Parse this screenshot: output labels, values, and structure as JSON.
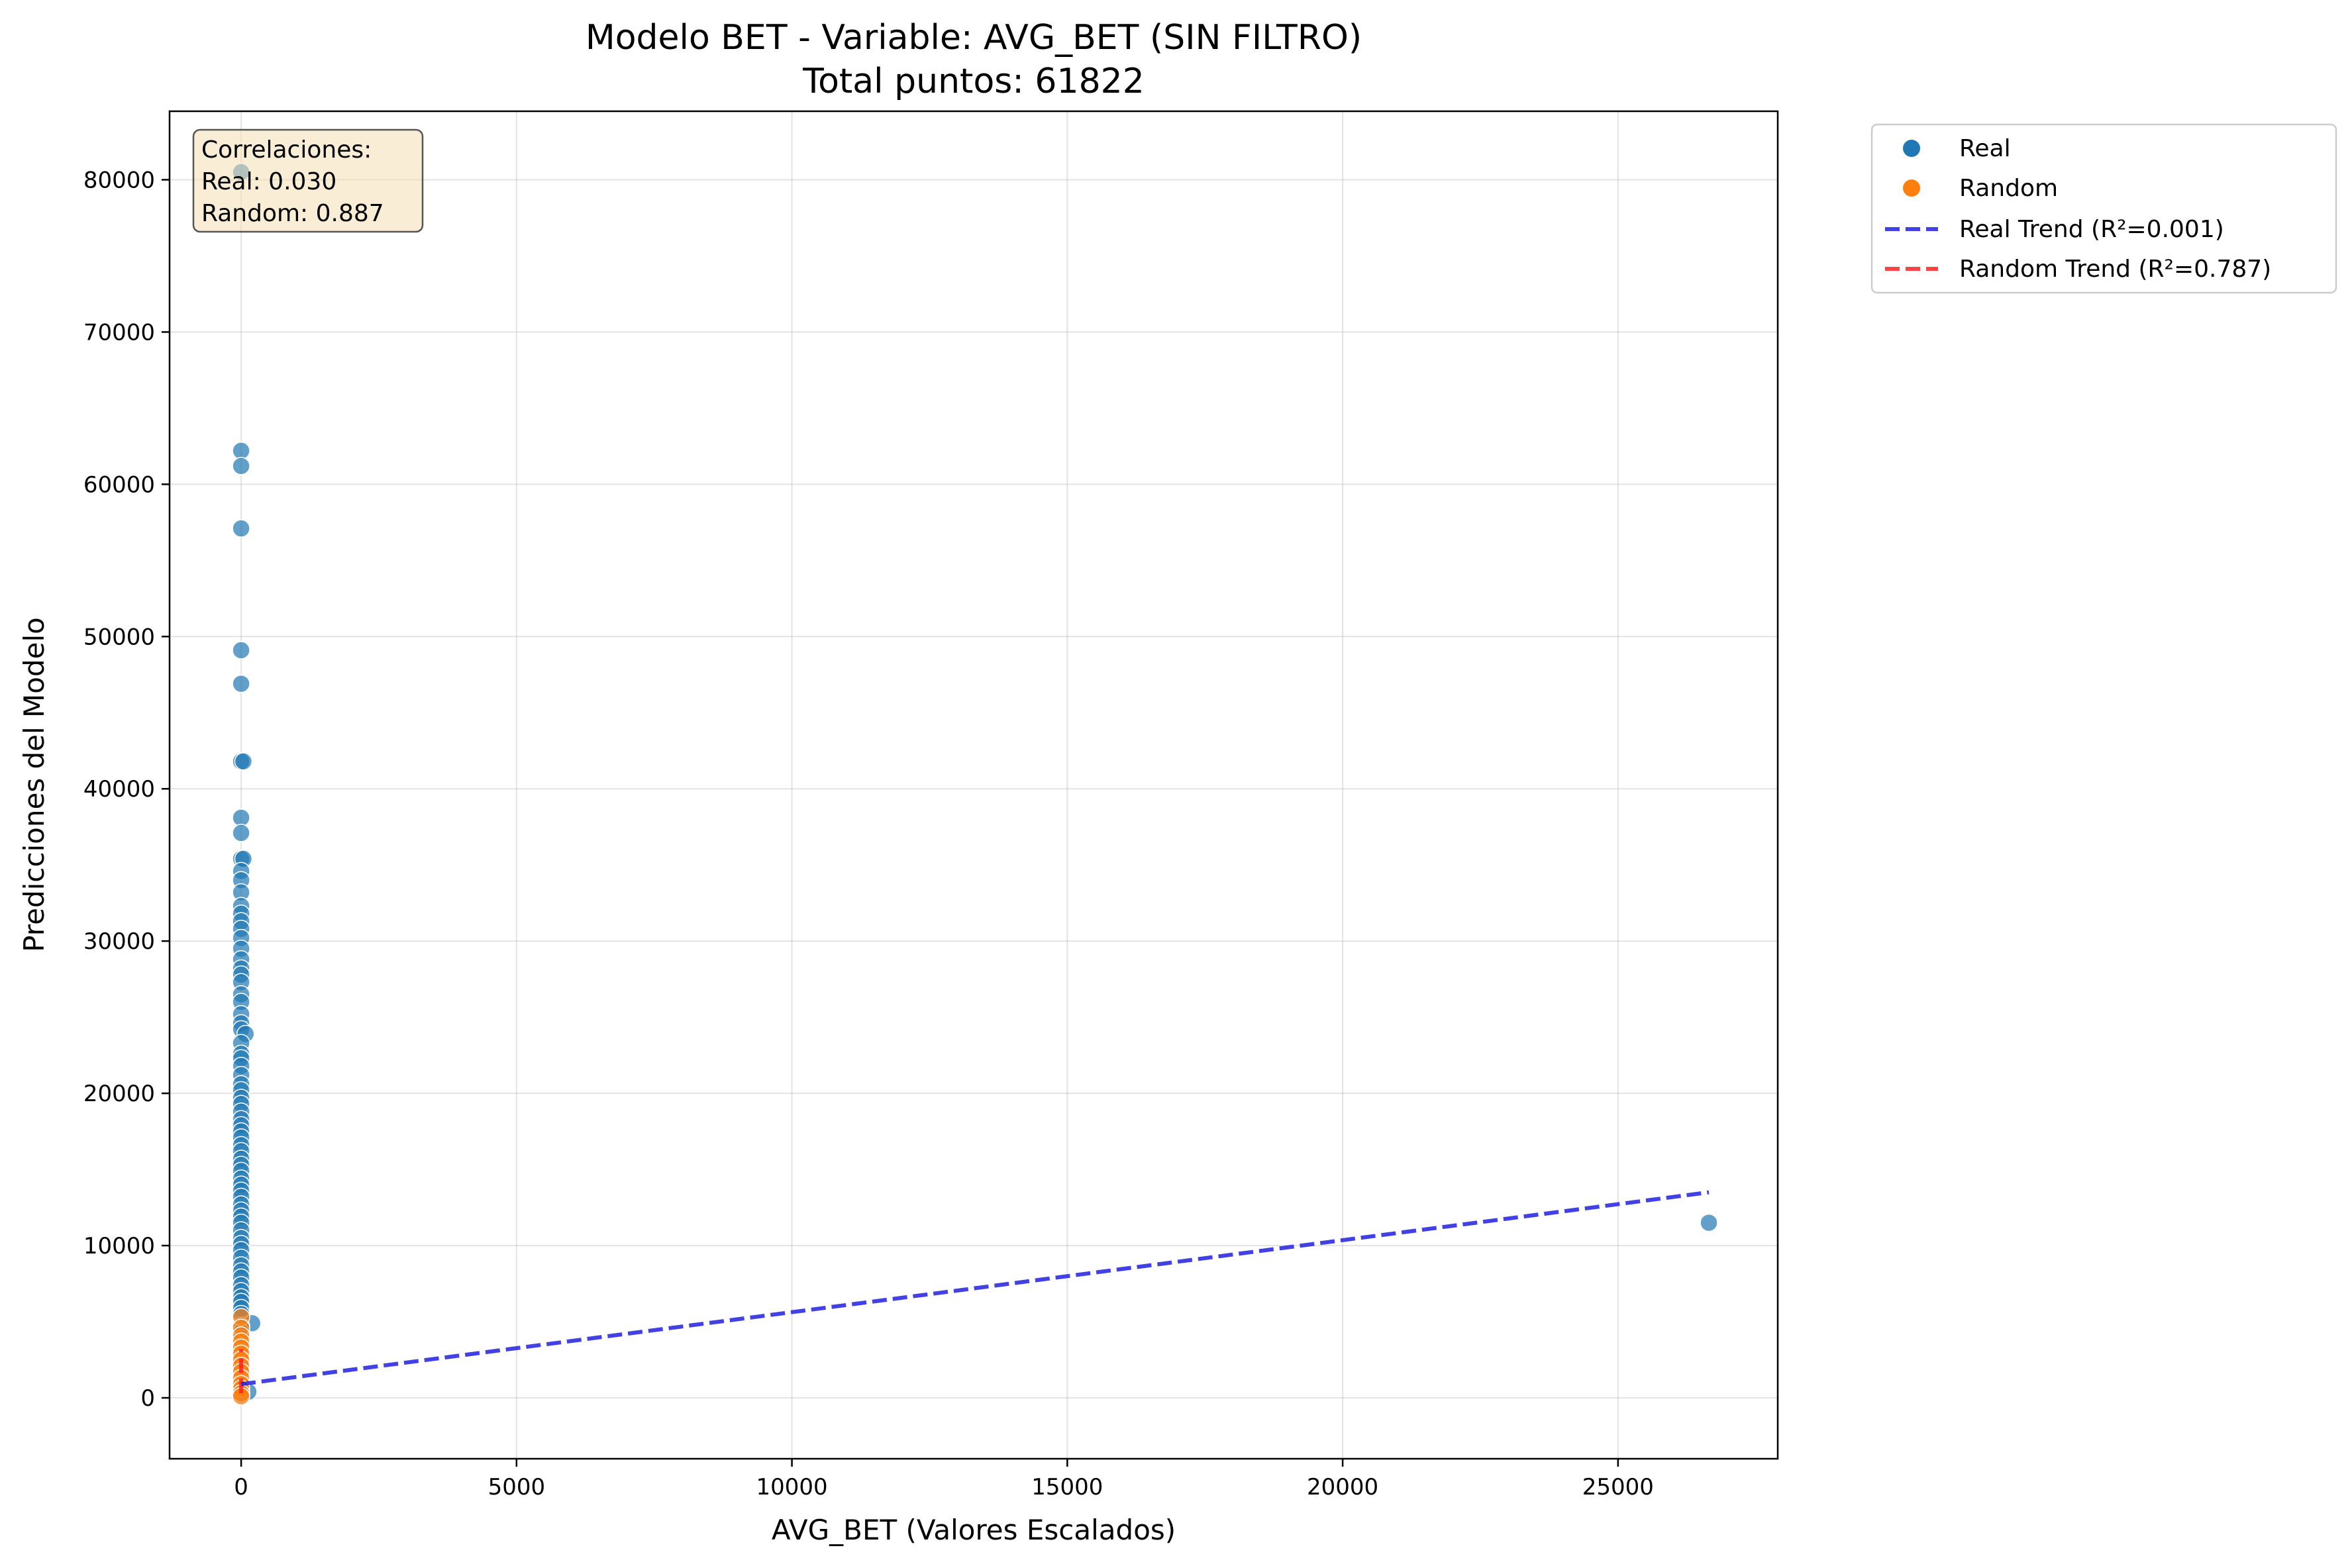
{
  "chart_data": {
    "type": "scatter",
    "title": "Modelo BET - Variable: AVG_BET (SIN FILTRO)",
    "subtitle": "Total puntos: 61822",
    "xlabel": "AVG_BET (Valores Escalados)",
    "ylabel": "Predicciones del Modelo",
    "xlim": [
      -1300,
      27900
    ],
    "ylim": [
      -4000,
      84500
    ],
    "xticks": [
      0,
      5000,
      10000,
      15000,
      20000,
      25000
    ],
    "yticks": [
      0,
      10000,
      20000,
      30000,
      40000,
      50000,
      60000,
      70000,
      80000
    ],
    "grid": true,
    "legend_position": "outside-top-right",
    "correlation_box": {
      "lines": [
        "Correlaciones:",
        "Real: 0.030",
        "Random: 0.887"
      ]
    },
    "legend": [
      {
        "label": "Real",
        "kind": "marker",
        "color": "#1f77b4"
      },
      {
        "label": "Random",
        "kind": "marker",
        "color": "#ff7f0e"
      },
      {
        "label": "Real Trend (R²=0.001)",
        "kind": "dashed",
        "color": "#2020e0"
      },
      {
        "label": "Random Trend (R²=0.787)",
        "kind": "dashed",
        "color": "#ff2020"
      }
    ],
    "series": [
      {
        "name": "Real",
        "color": "#1f77b4",
        "points": [
          [
            0,
            80500
          ],
          [
            0,
            62200
          ],
          [
            0,
            61200
          ],
          [
            0,
            57100
          ],
          [
            0,
            49100
          ],
          [
            0,
            46900
          ],
          [
            0,
            41800
          ],
          [
            40,
            41800
          ],
          [
            0,
            38100
          ],
          [
            0,
            37100
          ],
          [
            0,
            35400
          ],
          [
            40,
            35400
          ],
          [
            0,
            34600
          ],
          [
            0,
            34000
          ],
          [
            0,
            33200
          ],
          [
            0,
            32300
          ],
          [
            0,
            31800
          ],
          [
            0,
            31300
          ],
          [
            0,
            30800
          ],
          [
            0,
            30200
          ],
          [
            0,
            29500
          ],
          [
            0,
            28800
          ],
          [
            0,
            28200
          ],
          [
            0,
            27800
          ],
          [
            0,
            27300
          ],
          [
            0,
            26500
          ],
          [
            0,
            26000
          ],
          [
            0,
            25200
          ],
          [
            0,
            24600
          ],
          [
            0,
            24200
          ],
          [
            80,
            23900
          ],
          [
            0,
            23300
          ],
          [
            0,
            22600
          ],
          [
            0,
            22300
          ],
          [
            0,
            21800
          ],
          [
            0,
            21200
          ],
          [
            0,
            20600
          ],
          [
            0,
            20200
          ],
          [
            0,
            19700
          ],
          [
            0,
            19300
          ],
          [
            0,
            18800
          ],
          [
            0,
            18300
          ],
          [
            0,
            17900
          ],
          [
            0,
            17500
          ],
          [
            0,
            17100
          ],
          [
            0,
            16600
          ],
          [
            0,
            16200
          ],
          [
            0,
            15700
          ],
          [
            0,
            15300
          ],
          [
            0,
            14900
          ],
          [
            0,
            14400
          ],
          [
            0,
            14000
          ],
          [
            0,
            13600
          ],
          [
            0,
            13200
          ],
          [
            0,
            12700
          ],
          [
            0,
            12300
          ],
          [
            0,
            11900
          ],
          [
            0,
            11500
          ],
          [
            0,
            11000
          ],
          [
            0,
            10500
          ],
          [
            0,
            10100
          ],
          [
            0,
            9700
          ],
          [
            0,
            9200
          ],
          [
            0,
            8700
          ],
          [
            0,
            8300
          ],
          [
            0,
            7900
          ],
          [
            0,
            7400
          ],
          [
            0,
            7000
          ],
          [
            0,
            6600
          ],
          [
            0,
            6300
          ],
          [
            0,
            5900
          ],
          [
            0,
            5500
          ],
          [
            200,
            4900
          ],
          [
            0,
            4700
          ],
          [
            0,
            4300
          ],
          [
            0,
            3900
          ],
          [
            0,
            3400
          ],
          [
            0,
            3000
          ],
          [
            0,
            2600
          ],
          [
            0,
            2200
          ],
          [
            0,
            1800
          ],
          [
            0,
            1400
          ],
          [
            0,
            1000
          ],
          [
            0,
            600
          ],
          [
            130,
            400
          ],
          [
            0,
            200
          ],
          [
            26650,
            11500
          ]
        ]
      },
      {
        "name": "Random",
        "color": "#ff7f0e",
        "points": [
          [
            0,
            5300
          ],
          [
            0,
            4600
          ],
          [
            0,
            4100
          ],
          [
            0,
            3700
          ],
          [
            0,
            3300
          ],
          [
            0,
            2900
          ],
          [
            0,
            2500
          ],
          [
            0,
            2100
          ],
          [
            0,
            1700
          ],
          [
            0,
            1300
          ],
          [
            0,
            900
          ],
          [
            0,
            600
          ],
          [
            0,
            300
          ],
          [
            0,
            100
          ]
        ]
      }
    ],
    "trend_lines": [
      {
        "name": "Real Trend",
        "color": "#2020e0",
        "from": [
          0,
          900
        ],
        "to": [
          26650,
          13500
        ]
      },
      {
        "name": "Random Trend",
        "color": "#ff2020",
        "from": [
          0,
          300
        ],
        "to": [
          0,
          3200
        ]
      }
    ]
  }
}
